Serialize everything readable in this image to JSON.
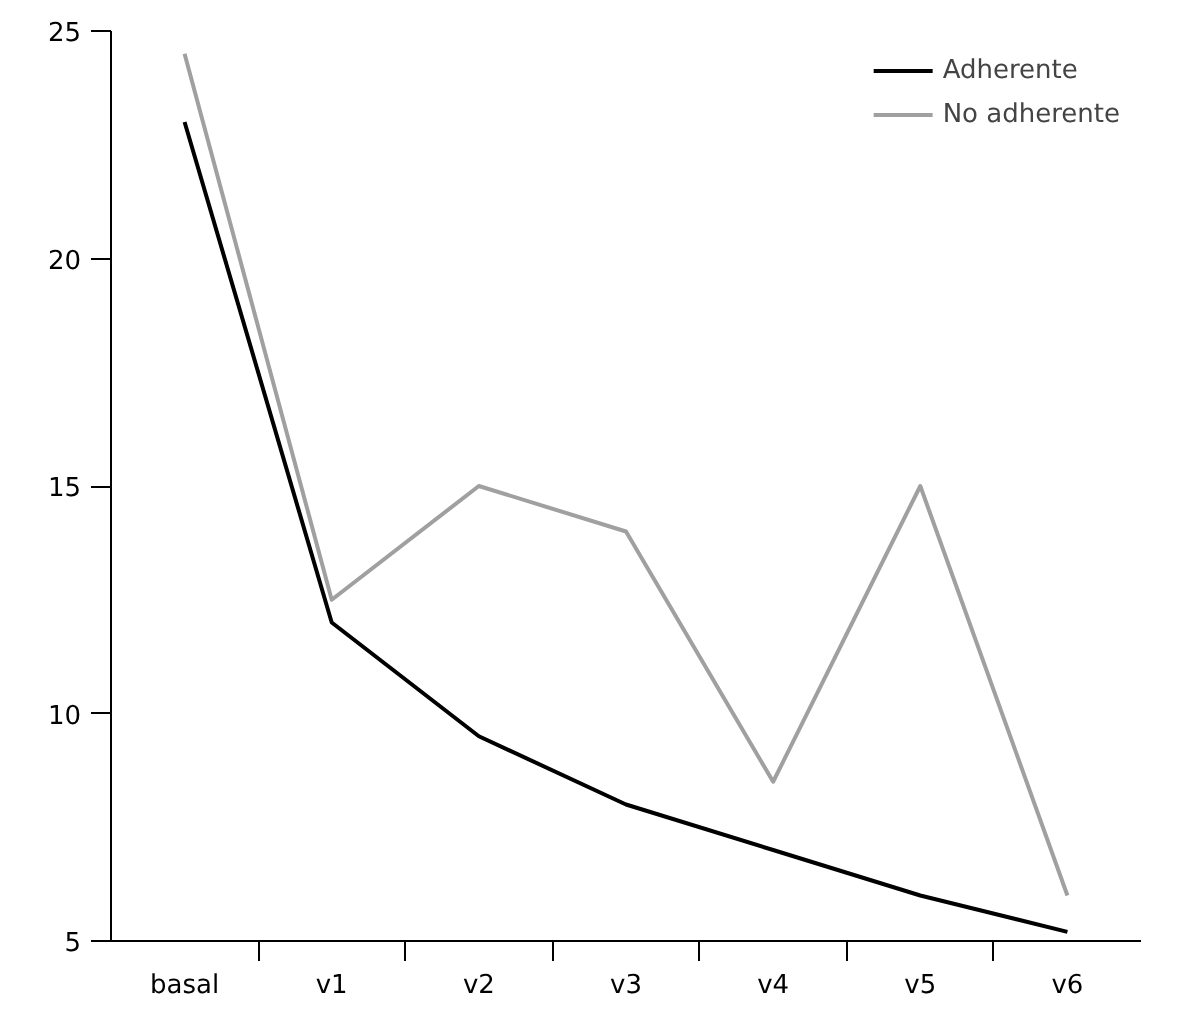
{
  "chart_data": {
    "type": "line",
    "categories": [
      "basal",
      "v1",
      "v2",
      "v3",
      "v4",
      "v5",
      "v6"
    ],
    "series": [
      {
        "name": "Adherente",
        "color": "#000000",
        "values": [
          23,
          12,
          9.5,
          8,
          7,
          6,
          5.2
        ]
      },
      {
        "name": "No adherente",
        "color": "#a0a0a0",
        "values": [
          24.5,
          12.5,
          15,
          14,
          8.5,
          15,
          6
        ]
      }
    ],
    "ylim": [
      5,
      25
    ],
    "yticks": [
      5,
      10,
      15,
      20,
      25
    ],
    "grid": false,
    "legend": "top right",
    "marker": "none",
    "line_style": "solid"
  }
}
